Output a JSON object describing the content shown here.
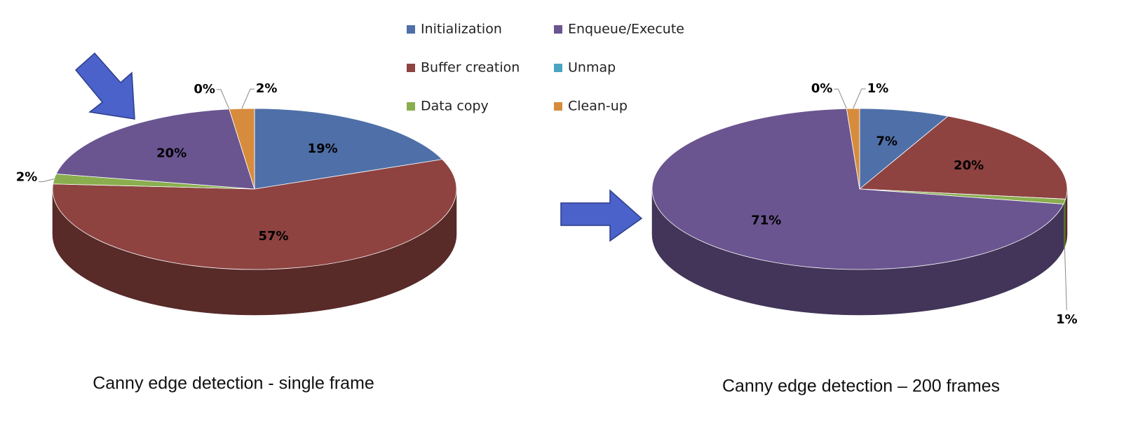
{
  "chart_data": [
    {
      "type": "pie",
      "title": "Canny edge detection - single frame",
      "categories": [
        "Initialization",
        "Buffer creation",
        "Data copy",
        "Enqueue/Execute",
        "Unmap",
        "Clean-up"
      ],
      "colors": [
        "#4f6fa8",
        "#8e4341",
        "#8aae4f",
        "#6a5590",
        "#4aa5c0",
        "#d78b3c"
      ],
      "values": [
        19,
        57,
        2,
        20,
        0,
        2
      ],
      "value_labels": [
        "19%",
        "57%",
        "2%",
        "20%",
        "0%",
        "2%"
      ]
    },
    {
      "type": "pie",
      "title": "Canny edge detection – 200 frames",
      "values": [
        7,
        20,
        1,
        71,
        0,
        1
      ],
      "value_labels": [
        "7%",
        "20%",
        "1%",
        "71%",
        "0%",
        "1%"
      ]
    }
  ]
}
